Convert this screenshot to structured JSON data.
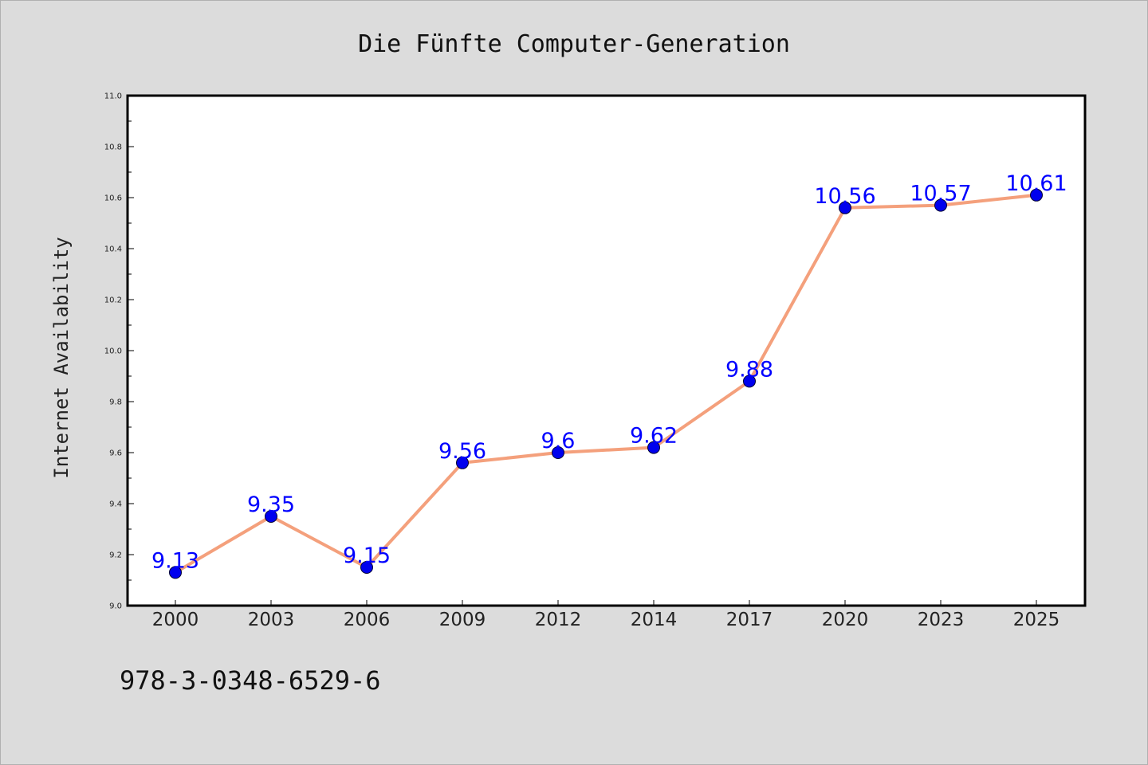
{
  "chart_data": {
    "type": "line",
    "title": "Die Fünfte Computer-Generation",
    "xlabel": "",
    "ylabel": "Internet Availability",
    "categories": [
      "2000",
      "2003",
      "2006",
      "2009",
      "2012",
      "2014",
      "2017",
      "2020",
      "2023",
      "2025"
    ],
    "series": [
      {
        "values": [
          9.13,
          9.35,
          9.15,
          9.56,
          9.6,
          9.62,
          9.88,
          10.56,
          10.57,
          10.61
        ],
        "data_labels": [
          "9.13",
          "9.35",
          "9.15",
          "9.56",
          "9.6",
          "9.62",
          "9.88",
          "10.56",
          "10.57",
          "10.61"
        ],
        "line_color": "#f4a07c",
        "marker_color": "#0000ee"
      }
    ],
    "ylim": [
      9.0,
      11.0
    ],
    "y_ticks": [
      "9.0",
      "9.2",
      "9.4",
      "9.6",
      "9.8",
      "10.0",
      "10.2",
      "10.4",
      "10.6",
      "10.8",
      "11.0"
    ],
    "grid": false,
    "legend": "none"
  },
  "annotation": {
    "isbn": "978-3-0348-6529-6"
  },
  "colors": {
    "background": "#dcdcdc",
    "plot_background": "#ffffff",
    "data_label": "#0000ff"
  }
}
